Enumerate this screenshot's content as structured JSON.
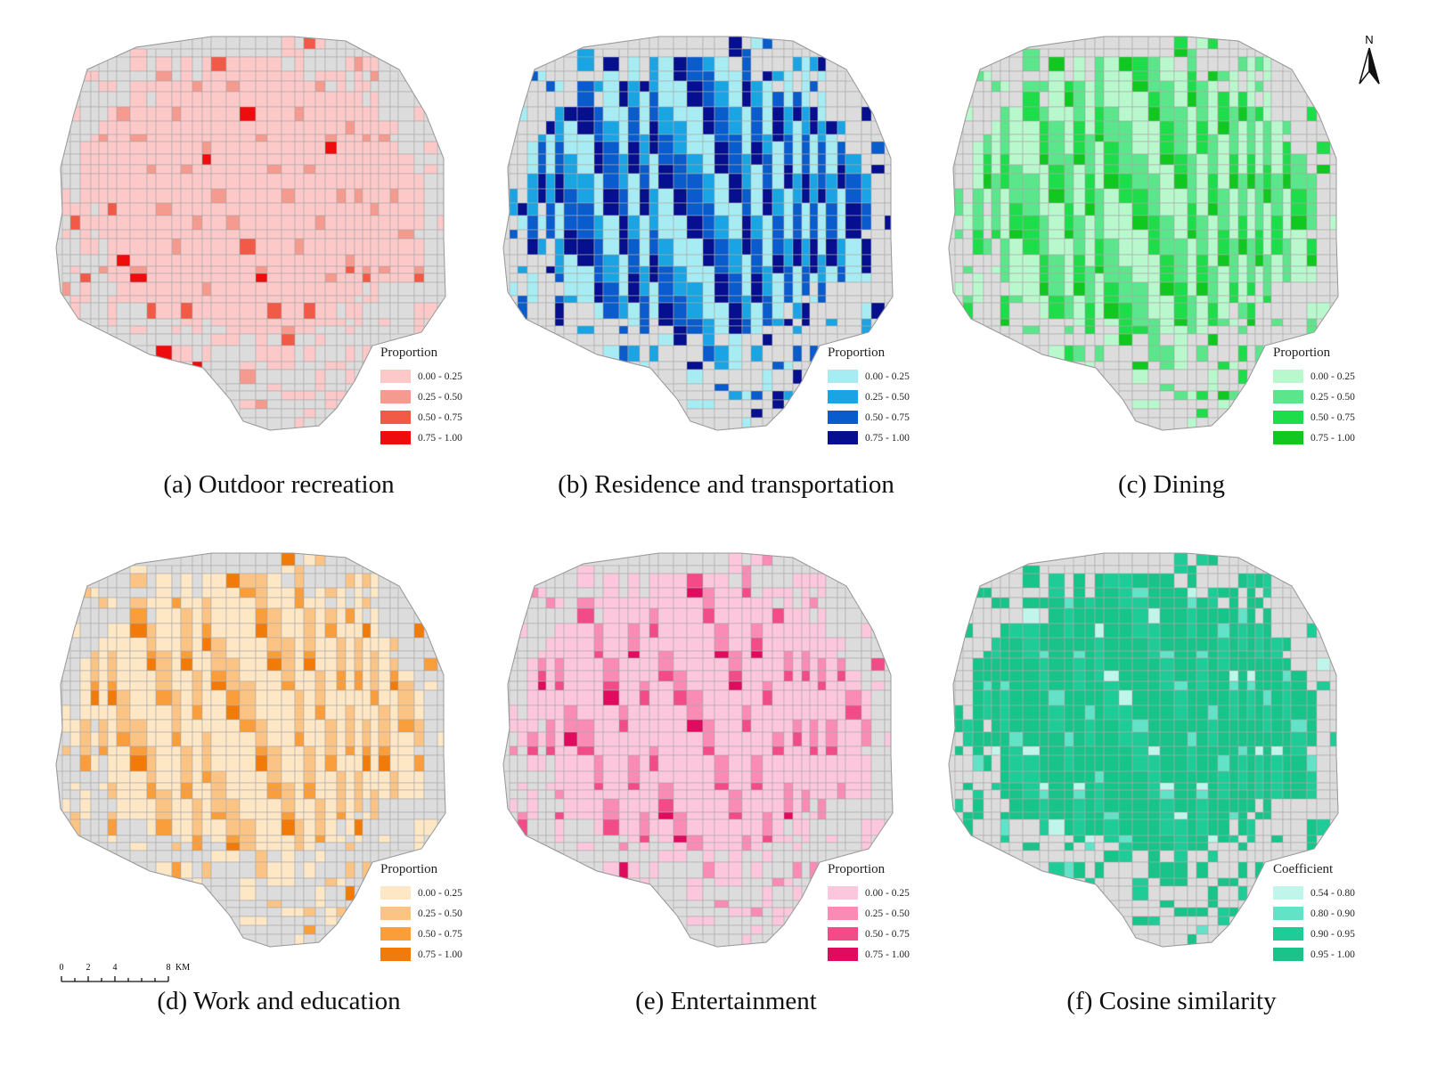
{
  "panels": [
    {
      "id": "a",
      "caption": "(a)  Outdoor recreation",
      "legend_title": "Proportion",
      "classes": [
        "0.00 - 0.25",
        "0.25 - 0.50",
        "0.50 - 0.75",
        "0.75 - 1.00"
      ],
      "colors": [
        "#fcc8c8",
        "#f59a8e",
        "#f25a48",
        "#ee0c0c"
      ],
      "weights": [
        0.9,
        0.07,
        0.02,
        0.01
      ]
    },
    {
      "id": "b",
      "caption": "(b)  Residence and transportation",
      "legend_title": "Proportion",
      "classes": [
        "0.00 - 0.25",
        "0.25 - 0.50",
        "0.50 - 0.75",
        "0.75 - 1.00"
      ],
      "colors": [
        "#a6ecf2",
        "#1aa4e4",
        "#0a5ccc",
        "#06108e"
      ],
      "weights": [
        0.32,
        0.22,
        0.26,
        0.2
      ]
    },
    {
      "id": "c",
      "caption": "(c)  Dining",
      "legend_title": "Proportion",
      "classes": [
        "0.00 - 0.25",
        "0.25 - 0.50",
        "0.50 - 0.75",
        "0.75 - 1.00"
      ],
      "colors": [
        "#b8f8cc",
        "#5be68c",
        "#1fdc4a",
        "#10c820"
      ],
      "weights": [
        0.4,
        0.32,
        0.2,
        0.08
      ]
    },
    {
      "id": "d",
      "caption": "(d)  Work and education",
      "legend_title": "Proportion",
      "classes": [
        "0.00 - 0.25",
        "0.25 - 0.50",
        "0.50 - 0.75",
        "0.75 - 1.00"
      ],
      "colors": [
        "#fde7c4",
        "#fcc484",
        "#fa9e3c",
        "#f27a08"
      ],
      "weights": [
        0.6,
        0.26,
        0.1,
        0.04
      ]
    },
    {
      "id": "e",
      "caption": "(e)  Entertainment",
      "legend_title": "Proportion",
      "classes": [
        "0.00 - 0.25",
        "0.25 - 0.50",
        "0.50 - 0.75",
        "0.75 - 1.00"
      ],
      "colors": [
        "#fcc6dc",
        "#f98bb4",
        "#f24c88",
        "#e00a5e"
      ],
      "weights": [
        0.75,
        0.15,
        0.07,
        0.03
      ]
    },
    {
      "id": "f",
      "caption": "(f)  Cosine similarity",
      "legend_title": "Coefficient",
      "classes": [
        "0.54 - 0.80",
        "0.80 - 0.90",
        "0.90 - 0.95",
        "0.95 - 1.00"
      ],
      "colors": [
        "#bff5ea",
        "#62e2c6",
        "#1fcc98",
        "#18c48a"
      ],
      "weights": [
        0.03,
        0.07,
        0.25,
        0.65
      ]
    }
  ],
  "nodata_color": "#dcdcdc",
  "north_label": "N",
  "scale": {
    "ticks": [
      "0",
      "2",
      "4",
      "8"
    ],
    "unit": "KM"
  }
}
